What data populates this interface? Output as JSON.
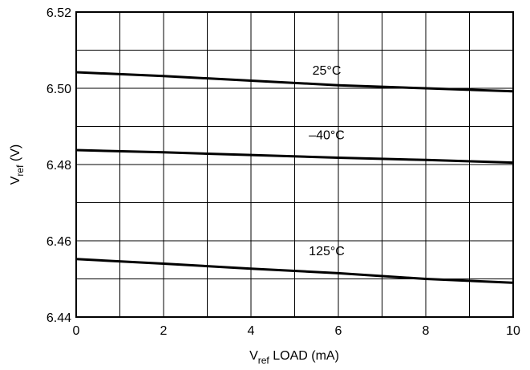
{
  "chart_data": {
    "type": "line",
    "xlabel": {
      "main": "V",
      "sub": "ref",
      "rest": " LOAD (mA)"
    },
    "ylabel": {
      "main": "V",
      "sub": "ref",
      "rest": " (V)"
    },
    "xlim": [
      0,
      10
    ],
    "ylim": [
      6.44,
      6.52
    ],
    "grid": true,
    "x_ticks": [
      0,
      1,
      2,
      3,
      4,
      5,
      6,
      7,
      8,
      9,
      10
    ],
    "x_tick_labels": [
      {
        "value": 0,
        "label": "0"
      },
      {
        "value": 2,
        "label": "2"
      },
      {
        "value": 4,
        "label": "4"
      },
      {
        "value": 6,
        "label": "6"
      },
      {
        "value": 8,
        "label": "8"
      },
      {
        "value": 10,
        "label": "10"
      }
    ],
    "y_ticks": [
      6.44,
      6.45,
      6.46,
      6.47,
      6.48,
      6.49,
      6.5,
      6.51,
      6.52
    ],
    "y_tick_labels": [
      {
        "value": 6.44,
        "label": "6.44"
      },
      {
        "value": 6.46,
        "label": "6.46"
      },
      {
        "value": 6.48,
        "label": "6.48"
      },
      {
        "value": 6.5,
        "label": "6.50"
      },
      {
        "value": 6.52,
        "label": "6.52"
      }
    ],
    "series": [
      {
        "name": "25°C",
        "x": [
          0,
          2,
          4,
          6,
          8,
          10
        ],
        "y": [
          6.5042,
          6.5032,
          6.502,
          6.5008,
          6.5,
          6.4992
        ],
        "label_at": [
          5,
          6.5036
        ]
      },
      {
        "name": "–40°C",
        "x": [
          0,
          2,
          4,
          6,
          8,
          10
        ],
        "y": [
          6.4838,
          6.4832,
          6.4825,
          6.4818,
          6.4812,
          6.4805
        ],
        "label_at": [
          5,
          6.4866
        ]
      },
      {
        "name": "125°C",
        "x": [
          0,
          2,
          4,
          6,
          8,
          10
        ],
        "y": [
          6.4552,
          6.454,
          6.4527,
          6.4515,
          6.45,
          6.449
        ],
        "label_at": [
          5,
          6.4562
        ]
      }
    ],
    "line_color": "#000000",
    "grid_color": "#000000"
  }
}
